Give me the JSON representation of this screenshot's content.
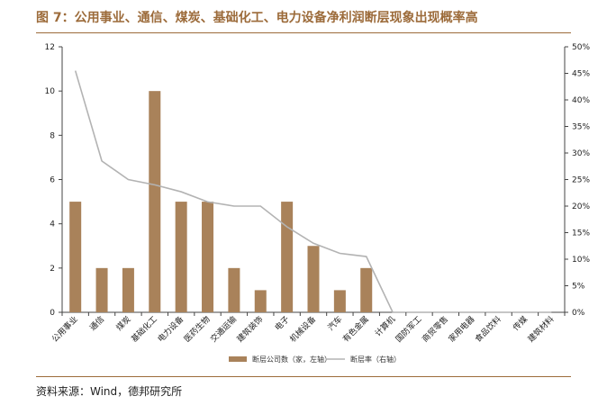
{
  "title": "图 7：公用事业、通信、煤炭、基础化工、电力设备净利润断层现象出现概率高",
  "source": "资料来源：Wind，德邦研究所",
  "colors": {
    "bar": "#a9825a",
    "line": "#b3b3b3",
    "accent": "#9c6b3a"
  },
  "chart_data": {
    "type": "bar",
    "categories": [
      "公用事业",
      "通信",
      "煤炭",
      "基础化工",
      "电力设备",
      "医药生物",
      "交通运输",
      "建筑装饰",
      "电子",
      "机械设备",
      "汽车",
      "有色金属",
      "计算机",
      "国防军工",
      "商贸零售",
      "家用电器",
      "食品饮料",
      "传媒",
      "建筑材料"
    ],
    "series": [
      {
        "name": "断层公司数（家，左轴）",
        "type": "bar",
        "axis": "left",
        "values": [
          5,
          2,
          2,
          10,
          5,
          5,
          2,
          1,
          5,
          3,
          1,
          2,
          0,
          0,
          0,
          0,
          0,
          0,
          0
        ]
      },
      {
        "name": "断层率（右轴）",
        "type": "line",
        "axis": "right",
        "values": [
          45.5,
          28.5,
          25.0,
          24.0,
          22.7,
          20.8,
          20.0,
          20.0,
          16.1,
          13.0,
          11.1,
          10.5,
          0,
          0,
          0,
          0,
          0,
          0,
          0
        ]
      }
    ],
    "ylim_left": [
      0,
      12
    ],
    "yticks_left": [
      "0",
      "2",
      "4",
      "6",
      "8",
      "10",
      "12"
    ],
    "ylim_right": [
      0,
      50
    ],
    "yticks_right": [
      "0%",
      "5%",
      "10%",
      "15%",
      "20%",
      "25%",
      "30%",
      "35%",
      "40%",
      "45%",
      "50%"
    ],
    "legend": "bottom-center",
    "grid": false
  }
}
